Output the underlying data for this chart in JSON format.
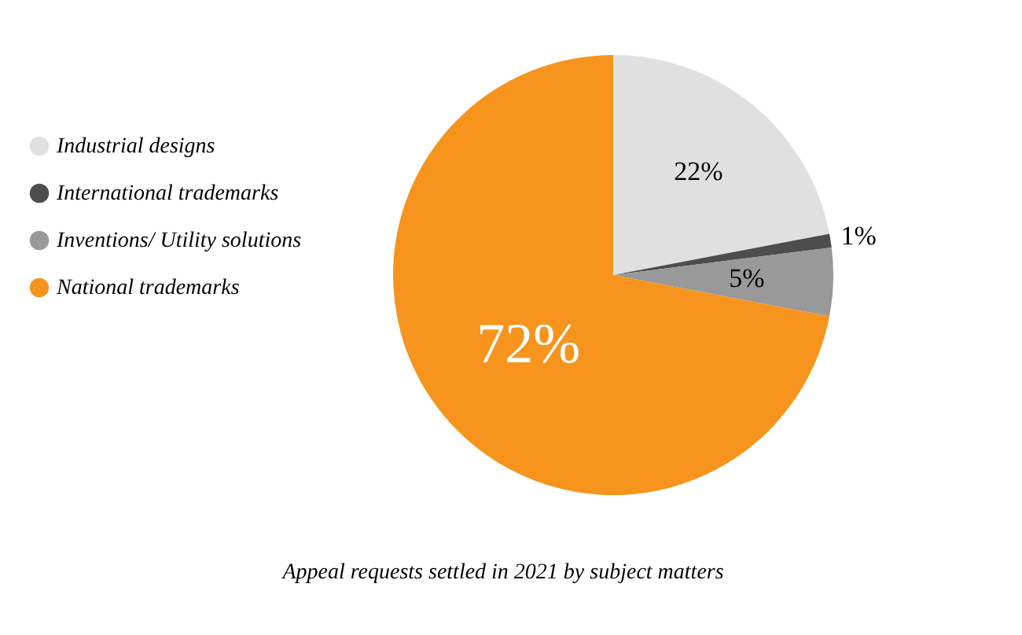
{
  "chart_data": {
    "type": "pie",
    "title": "Appeal requests settled in 2021 by subject matters",
    "categories": [
      "Industrial designs",
      "International trademarks",
      "Inventions/ Utility solutions",
      "National trademarks"
    ],
    "values": [
      22,
      1,
      5,
      72
    ],
    "colors": [
      "#e0e0e0",
      "#4d4d4d",
      "#999999",
      "#f7941d"
    ],
    "value_labels": [
      "22%",
      "1%",
      "5%",
      "72%"
    ],
    "legend": "left"
  }
}
